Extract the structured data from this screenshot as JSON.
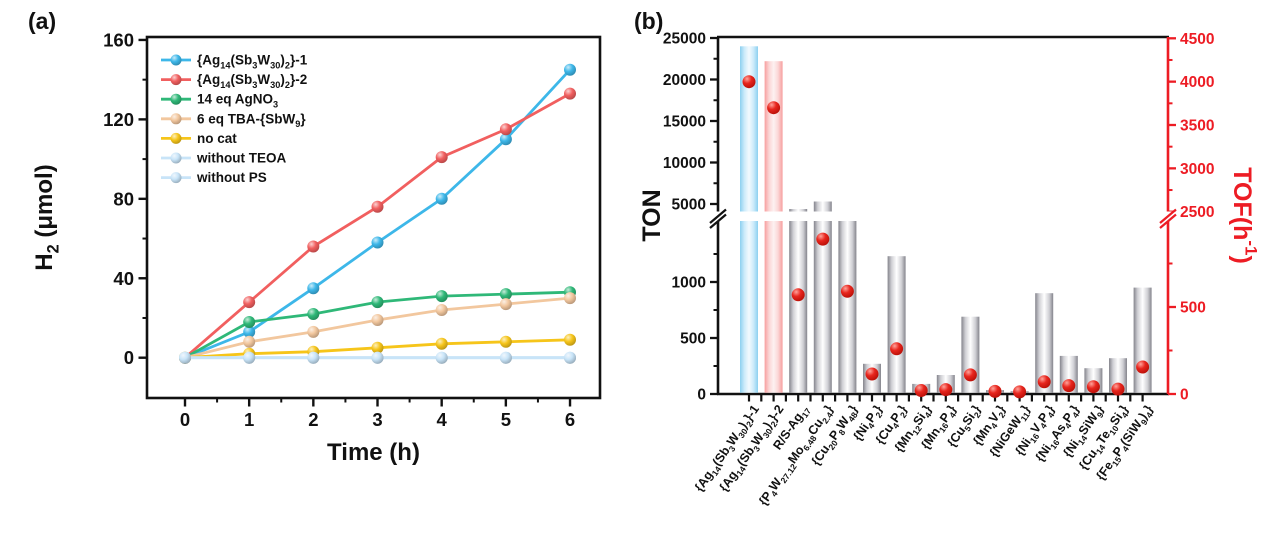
{
  "figure": {
    "panel_a_label": "(a)",
    "panel_b_label": "(b)"
  },
  "colors": {
    "axis_black": "#111111",
    "axis_red": "#ED1C24",
    "dot_red": "#E8261E",
    "bar_gray_edge": "#84848C",
    "bar_blue_edge": "#8CD0F0",
    "bar_pink_edge": "#F79E9E"
  },
  "chart_data": [
    {
      "id": "panel_a",
      "type": "line",
      "title": "",
      "xlabel": "Time (h)",
      "ylabel": "H_{2} (μmol)",
      "xlim": [
        -0.6,
        6.5
      ],
      "ylim": [
        -20,
        162
      ],
      "xticks": [
        0,
        1,
        2,
        3,
        4,
        5,
        6
      ],
      "xminor": [
        0.5,
        1.5,
        2.5,
        3.5,
        4.5,
        5.5
      ],
      "yticks": [
        0,
        40,
        80,
        120,
        160
      ],
      "yminor": [
        20,
        60,
        100,
        140
      ],
      "grid": false,
      "legend_position": "top-left",
      "x": [
        0,
        1,
        2,
        3,
        4,
        5,
        6
      ],
      "series": [
        {
          "name": "{Ag_{14}(Sb_{3}W_{30})_{2}}-1",
          "color": "#3DB7E9",
          "values": [
            0,
            13,
            35,
            58,
            80,
            110,
            145
          ]
        },
        {
          "name": "{Ag_{14}(Sb_{3}W_{30})_{2}}-2",
          "color": "#F15F5F",
          "values": [
            0,
            28,
            56,
            76,
            101,
            115,
            133
          ]
        },
        {
          "name": "14 eq AgNO_{3}",
          "color": "#2FB878",
          "values": [
            0,
            18,
            22,
            28,
            31,
            32,
            33
          ]
        },
        {
          "name": "6 eq TBA-{SbW_{9}}",
          "color": "#F2C79E",
          "values": [
            0,
            8,
            13,
            19,
            24,
            27,
            30
          ]
        },
        {
          "name": "no cat",
          "color": "#F6C51A",
          "values": [
            0,
            2,
            3,
            5,
            7,
            8,
            9
          ]
        },
        {
          "name": "without TEOA",
          "color": "#C8E4F8",
          "values": [
            0,
            0,
            0,
            0,
            0,
            0,
            0
          ]
        },
        {
          "name": "without PS",
          "color": "#C8E4F8",
          "values": [
            0,
            0,
            0,
            0,
            0,
            0,
            0
          ]
        }
      ]
    },
    {
      "id": "panel_b",
      "type": "bar",
      "ylabel_left": "TON",
      "ylabel_right": "TOF(h^{-1})",
      "axis_break": true,
      "left_axis": {
        "upper_ticks": [
          5000,
          10000,
          15000,
          20000,
          25000
        ],
        "upper_minor": [
          7500,
          12500,
          17500,
          22500
        ],
        "lower_ticks": [
          0,
          500,
          1000
        ],
        "lower_minor": [
          250,
          750,
          1250
        ],
        "upper_range": [
          5000,
          25000
        ],
        "lower_range": [
          0,
          1500
        ]
      },
      "right_axis": {
        "upper_ticks": [
          2500,
          3000,
          3500,
          4000,
          4500
        ],
        "upper_minor": [
          2750,
          3250,
          3750,
          4250
        ],
        "lower_ticks": [
          0,
          500
        ],
        "lower_minor": [
          250,
          750
        ],
        "upper_range": [
          2500,
          4500
        ],
        "lower_range": [
          0,
          1000
        ]
      },
      "categories": [
        "{Ag_{14}(Sb_{3}W_{30})_{2}}-1",
        "{Ag_{14}(Sb_{3}W_{30})_{2}}-2",
        "R/S-Ag_{17}",
        "{P_{4}W_{27.12}Mo_{6.48}Cu_{2.4}}",
        "{Cu_{20}P_{8}W_{48}}",
        "{Ni_{4}P_{2}}",
        "{Cu_{4}P_{2}}",
        "{Mn_{12}Si_{4}}",
        "{Mn_{16}P_{4}}",
        "{Cu_{5}Si_{2}}",
        "{Mn_{4}V_{2}}",
        "{NiGeW_{11}}",
        "{Ni_{16}V_{4}P_{4}}",
        "{Ni_{16}As_{4}P_{4}}",
        "{Ni_{14}SiW_{9}}",
        "{Cu_{14}Te_{10}Si_{4}}",
        "{Fe_{15}P_{4}(SiW_{9})_{4}}"
      ],
      "series": [
        {
          "name": "TON",
          "axis": "left",
          "values": [
            24000,
            22200,
            4400,
            5300,
            3900,
            270,
            1230,
            90,
            170,
            690,
            35,
            25,
            900,
            340,
            230,
            320,
            950
          ]
        },
        {
          "name": "TOF",
          "axis": "right",
          "values": [
            4000,
            3700,
            570,
            890,
            590,
            115,
            260,
            20,
            25,
            110,
            15,
            12,
            70,
            48,
            42,
            28,
            155
          ]
        }
      ],
      "bar_styles": [
        "blue",
        "pink",
        "gray",
        "gray",
        "gray",
        "gray",
        "gray",
        "gray",
        "gray",
        "gray",
        "gray",
        "gray",
        "gray",
        "gray",
        "gray",
        "gray",
        "gray"
      ]
    }
  ]
}
